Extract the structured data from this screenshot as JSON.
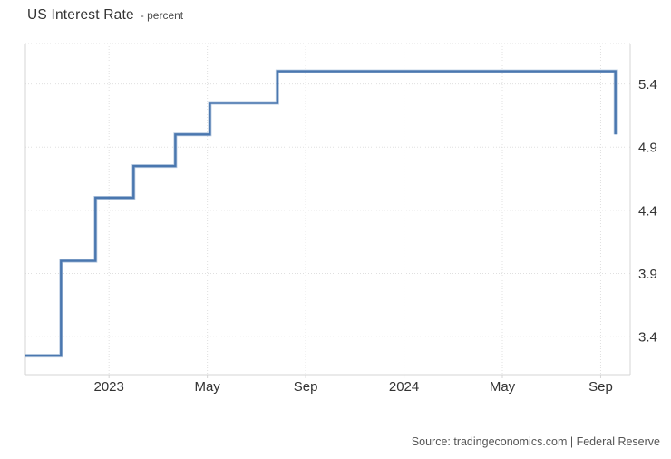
{
  "header": {
    "title": "US Interest Rate",
    "subtitle": "- percent"
  },
  "footer": {
    "source": "Source: tradingeconomics.com | Federal Reserve"
  },
  "colors": {
    "line": "#4a77af",
    "line_edge": "#7fa1c9",
    "grid": "#e0e0e0",
    "axis": "#d4d4d4",
    "tick_text": "#333333",
    "background": "#ffffff"
  },
  "chart_data": {
    "type": "line",
    "subtype": "step-after",
    "title": "US Interest Rate",
    "ylabel": "percent",
    "grid": "dotted",
    "legend": false,
    "y_ticks": [
      3.4,
      3.9,
      4.4,
      4.9,
      5.4
    ],
    "y_domain": [
      3.1,
      5.72
    ],
    "x_domain_months_from_2022_09": [
      0.6,
      25.2
    ],
    "x_ticks": [
      {
        "label": "2023",
        "m": 4
      },
      {
        "label": "May",
        "m": 8
      },
      {
        "label": "Sep",
        "m": 12
      },
      {
        "label": "2024",
        "m": 16
      },
      {
        "label": "May",
        "m": 20
      },
      {
        "label": "Sep",
        "m": 24
      }
    ],
    "series": [
      {
        "name": "US Interest Rate",
        "points": [
          {
            "date": "2022-09",
            "m": 0.6,
            "value": 3.25
          },
          {
            "date": "2022-11",
            "m": 2.05,
            "value": 4.0
          },
          {
            "date": "2022-12",
            "m": 3.45,
            "value": 4.5
          },
          {
            "date": "2023-02",
            "m": 5.0,
            "value": 4.75
          },
          {
            "date": "2023-03",
            "m": 6.7,
            "value": 5.0
          },
          {
            "date": "2023-05",
            "m": 8.1,
            "value": 5.25
          },
          {
            "date": "2023-07",
            "m": 10.85,
            "value": 5.5
          },
          {
            "date": "2024-09",
            "m": 24.6,
            "value": 5.0
          }
        ]
      }
    ]
  }
}
